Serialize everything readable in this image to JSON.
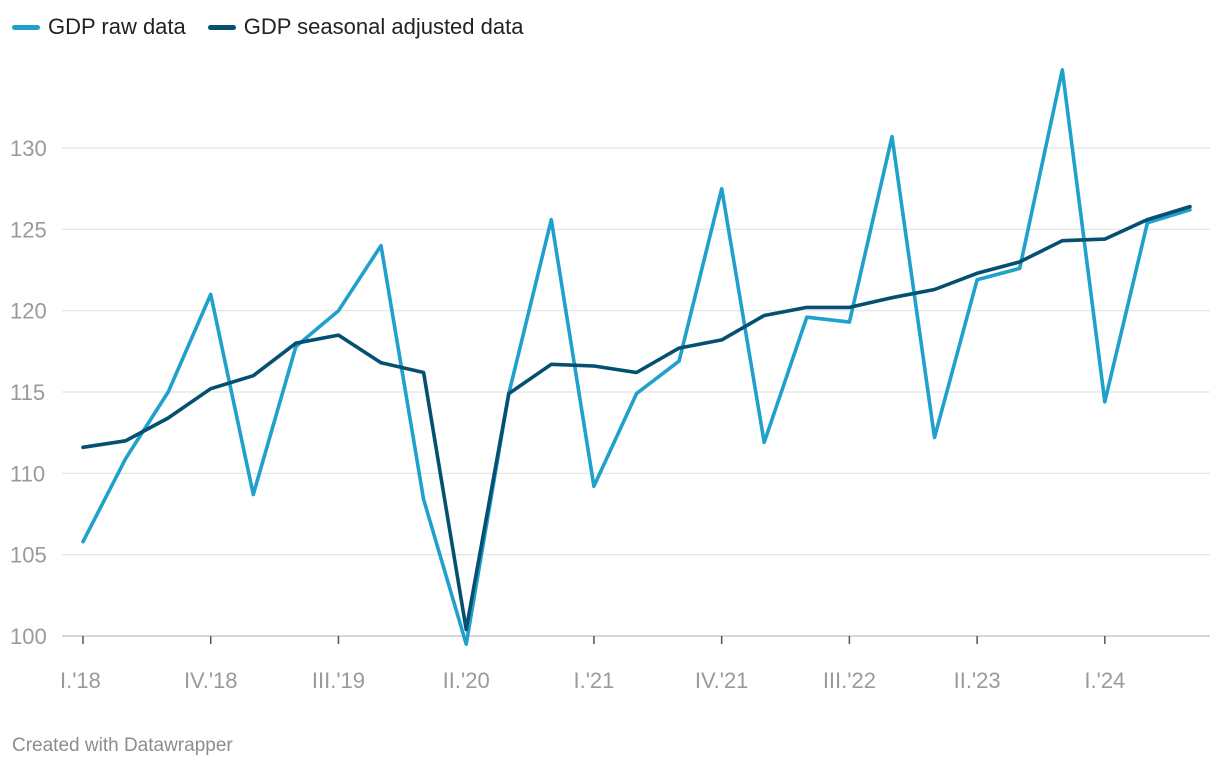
{
  "chart_data": {
    "type": "line",
    "title": "",
    "xlabel": "",
    "ylabel": "",
    "ylim": [
      100,
      134.5
    ],
    "yticks": [
      100,
      105,
      110,
      115,
      120,
      125,
      130
    ],
    "grid": true,
    "legend_position": "top-left",
    "x": [
      "I.'18",
      "II.'18",
      "III.'18",
      "IV.'18",
      "I.'19",
      "II.'19",
      "III.'19",
      "IV.'19",
      "I.'20",
      "II.'20",
      "III.'20",
      "IV.'20",
      "I.'21",
      "II.'21",
      "III.'21",
      "IV.'21",
      "I.'22",
      "II.'22",
      "III.'22",
      "IV.'22",
      "I.'23",
      "II.'23",
      "III.'23",
      "IV.'23",
      "I.'24",
      "II.'24",
      "III.'24"
    ],
    "x_tick_labels": [
      "I.'18",
      "IV.'18",
      "III.'19",
      "II.'20",
      "I.'21",
      "IV.'21",
      "III.'22",
      "II.'23",
      "I.'24"
    ],
    "series": [
      {
        "name": "GDP raw data",
        "color": "#1fa1cc",
        "values": [
          105.8,
          110.9,
          115.0,
          121.0,
          108.7,
          117.8,
          120.0,
          124.0,
          108.4,
          99.5,
          114.9,
          125.6,
          109.2,
          114.9,
          116.9,
          127.5,
          111.9,
          119.6,
          119.3,
          130.7,
          112.2,
          121.9,
          122.6,
          134.8,
          114.4,
          125.4,
          126.2
        ]
      },
      {
        "name": "GDP seasonal adjusted data",
        "color": "#054f71",
        "values": [
          111.6,
          112.0,
          113.4,
          115.2,
          116.0,
          118.0,
          118.5,
          116.8,
          116.2,
          100.4,
          114.9,
          116.7,
          116.6,
          116.2,
          117.7,
          118.2,
          119.7,
          120.2,
          120.2,
          120.8,
          121.3,
          122.3,
          123.0,
          124.3,
          124.4,
          125.6,
          126.4
        ]
      }
    ]
  },
  "footer": {
    "credit": "Created with Datawrapper"
  }
}
